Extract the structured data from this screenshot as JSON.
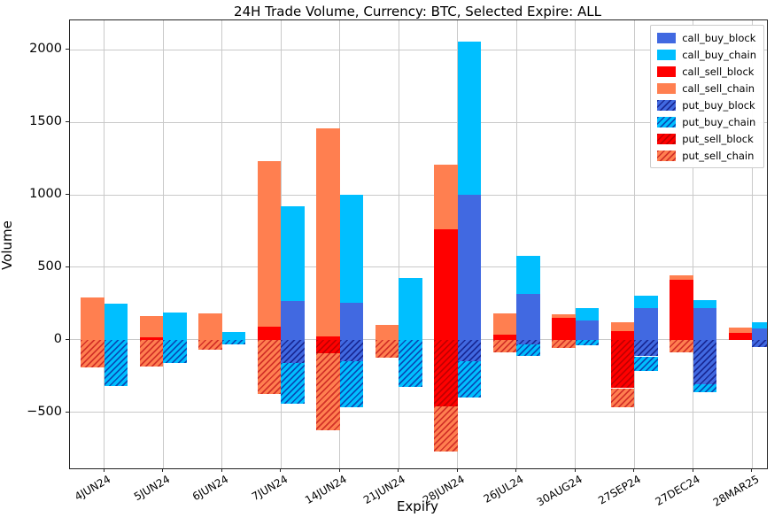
{
  "title": "24H Trade Volume, Currency: BTC, Selected Expire: ALL",
  "colors": {
    "block_buy": "#4169E1",
    "chain_buy": "#00BFFF",
    "block_sell": "#FF0000",
    "chain_sell": "#FF7F50",
    "grid": "#c9c9c9"
  },
  "chart_data": {
    "type": "bar",
    "title": "24H Trade Volume, Currency: BTC, Selected Expire: ALL",
    "xlabel": "Expiry",
    "ylabel": "Volume",
    "grid": true,
    "legend_position": "upper right",
    "ylim": [
      -888,
      2204
    ],
    "yticks": [
      -500,
      0,
      500,
      1000,
      1500,
      2000
    ],
    "categories": [
      "4JUN24",
      "5JUN24",
      "6JUN24",
      "7JUN24",
      "14JUN24",
      "21JUN24",
      "28JUN24",
      "26JUL24",
      "30AUG24",
      "27SEP24",
      "27DEC24",
      "28MAR25"
    ],
    "series": [
      {
        "name": "call_buy_block",
        "bar": "buy",
        "color": "#4169E1",
        "hatch": false,
        "hatch_color": "",
        "values": [
          0,
          0,
          0,
          265,
          255,
          0,
          1000,
          315,
          135,
          215,
          215,
          75
        ]
      },
      {
        "name": "call_buy_chain",
        "bar": "buy",
        "color": "#00BFFF",
        "hatch": false,
        "hatch_color": "",
        "values": [
          250,
          185,
          55,
          655,
          745,
          425,
          1060,
          265,
          85,
          90,
          55,
          45
        ]
      },
      {
        "name": "call_sell_block",
        "bar": "sell",
        "color": "#FF0000",
        "hatch": false,
        "hatch_color": "",
        "values": [
          0,
          15,
          0,
          90,
          25,
          0,
          760,
          35,
          150,
          60,
          415,
          45
        ]
      },
      {
        "name": "call_sell_chain",
        "bar": "sell",
        "color": "#FF7F50",
        "hatch": false,
        "hatch_color": "",
        "values": [
          290,
          150,
          180,
          1145,
          1435,
          100,
          450,
          145,
          25,
          60,
          30,
          40
        ]
      },
      {
        "name": "put_buy_block",
        "bar": "buy",
        "color": "#4169E1",
        "hatch": true,
        "hatch_color": "rgba(0,0,100,0.6)",
        "values": [
          0,
          0,
          0,
          -160,
          -150,
          0,
          -150,
          -30,
          0,
          -115,
          -310,
          -50
        ]
      },
      {
        "name": "put_buy_chain",
        "bar": "buy",
        "color": "#00BFFF",
        "hatch": true,
        "hatch_color": "rgba(10,40,160,0.75)",
        "values": [
          -320,
          -160,
          -30,
          -280,
          -315,
          -325,
          -250,
          -80,
          -40,
          -100,
          -50,
          0
        ]
      },
      {
        "name": "put_sell_block",
        "bar": "sell",
        "color": "#FF0000",
        "hatch": true,
        "hatch_color": "rgba(120,0,0,0.45)",
        "values": [
          0,
          0,
          0,
          0,
          -95,
          0,
          -460,
          0,
          0,
          -335,
          0,
          0
        ]
      },
      {
        "name": "put_sell_chain",
        "bar": "sell",
        "color": "#FF7F50",
        "hatch": true,
        "hatch_color": "rgba(200,30,30,0.8)",
        "values": [
          -190,
          -185,
          -70,
          -375,
          -530,
          -125,
          -310,
          -85,
          -55,
          -130,
          -90,
          0
        ]
      }
    ]
  }
}
